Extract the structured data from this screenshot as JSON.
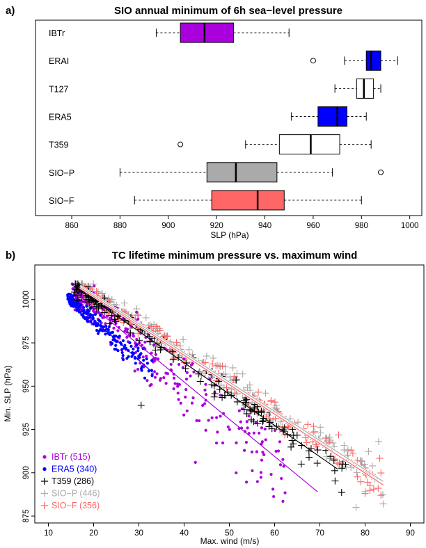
{
  "chart_data": [
    {
      "type": "boxplot",
      "panel_label": "a)",
      "title": "SIO annual minimum of 6h sea−level pressure",
      "xlabel": "SLP (hPa)",
      "xlim": [
        845,
        1005
      ],
      "xticks": [
        "860",
        "880",
        "900",
        "920",
        "940",
        "960",
        "980",
        "1000"
      ],
      "colors": {
        "IBTr": "#aa00dd",
        "ERAI": "#0000ff",
        "T127": "#ffffff",
        "ERA5": "#0000ff",
        "T359": "#ffffff",
        "SIO-P": "#aaaaaa",
        "SIO-F": "#ff6666"
      },
      "boxes": [
        {
          "name": "IBTr",
          "color": "#aa00dd",
          "whisker_low": 895,
          "q1": 905,
          "median": 915,
          "q3": 927,
          "whisker_high": 950,
          "outliers": []
        },
        {
          "name": "ERAI",
          "color": "#0000ff",
          "whisker_low": 973,
          "q1": 982,
          "median": 984,
          "q3": 988,
          "whisker_high": 995,
          "outliers": [
            960
          ]
        },
        {
          "name": "T127",
          "color": "#ffffff",
          "whisker_low": 969,
          "q1": 978,
          "median": 981,
          "q3": 985,
          "whisker_high": 988,
          "outliers": []
        },
        {
          "name": "ERA5",
          "color": "#0000ff",
          "whisker_low": 951,
          "q1": 962,
          "median": 970,
          "q3": 974,
          "whisker_high": 982,
          "outliers": []
        },
        {
          "name": "T359",
          "color": "#ffffff",
          "whisker_low": 932,
          "q1": 946,
          "median": 959,
          "q3": 971,
          "whisker_high": 984,
          "outliers": [
            905
          ]
        },
        {
          "name": "SIO−P",
          "color": "#aaaaaa",
          "whisker_low": 880,
          "q1": 916,
          "median": 928,
          "q3": 945,
          "whisker_high": 968,
          "outliers": [
            988
          ]
        },
        {
          "name": "SIO−F",
          "color": "#ff6666",
          "whisker_low": 886,
          "q1": 918,
          "median": 937,
          "q3": 948,
          "whisker_high": 980,
          "outliers": []
        }
      ]
    },
    {
      "type": "scatter",
      "panel_label": "b)",
      "title": "TC lifetime minimum pressure vs. maximum wind",
      "xlabel": "Max. wind (m/s)",
      "ylabel": "Min. SLP (hPa)",
      "xlim": [
        7,
        93
      ],
      "ylim": [
        871,
        1020
      ],
      "xticks": [
        "10",
        "20",
        "30",
        "40",
        "50",
        "60",
        "70",
        "80",
        "90"
      ],
      "yticks": [
        "875",
        "900",
        "925",
        "950",
        "975",
        "1000"
      ],
      "legend_position": "bottom-left",
      "series": [
        {
          "name": "IBTr",
          "count_label": "(515)",
          "color": "#aa00dd",
          "marker": "dot",
          "n": 515,
          "wind_range": [
            16,
            62
          ],
          "trend": {
            "x": [
              16,
              69.5
            ],
            "y": [
              1004,
              889
            ]
          },
          "noise": 20
        },
        {
          "name": "ERA5",
          "count_label": "(340)",
          "color": "#0000ff",
          "marker": "dot",
          "n": 340,
          "wind_range": [
            15,
            33
          ],
          "trend": {
            "x": [
              15,
              33
            ],
            "y": [
              1000,
              958
            ]
          },
          "noise": 7
        },
        {
          "name": "T359",
          "count_label": "(286)",
          "color": "#000000",
          "marker": "plus",
          "n": 286,
          "wind_range": [
            16,
            75
          ],
          "trend": {
            "x": [
              16,
              74
            ],
            "y": [
              1007,
              902
            ]
          },
          "noise": 10
        },
        {
          "name": "SIO−P",
          "count_label": "(446)",
          "color": "#aaaaaa",
          "marker": "plus",
          "n": 446,
          "wind_range": [
            17,
            84
          ],
          "trend": {
            "x": [
              17,
              84
            ],
            "y": [
              1008,
              895
            ]
          },
          "noise": 9
        },
        {
          "name": "SIO−F",
          "count_label": "(356)",
          "color": "#ff6666",
          "marker": "plus",
          "n": 356,
          "wind_range": [
            17,
            84
          ],
          "trend": {
            "x": [
              17,
              84
            ],
            "y": [
              1007,
              893
            ]
          },
          "noise": 9
        }
      ],
      "outlier_points": [
        {
          "series": "T359",
          "x": 30.5,
          "y": 939
        },
        {
          "series": "T359",
          "x": 75,
          "y": 905
        },
        {
          "series": "IBTr",
          "x": 42.5,
          "y": 906
        },
        {
          "series": "IBTr",
          "x": 55,
          "y": 912
        },
        {
          "series": "SIO−P",
          "x": 78,
          "y": 880
        },
        {
          "series": "SIO−P",
          "x": 84,
          "y": 882
        },
        {
          "series": "SIO−P",
          "x": 83,
          "y": 918
        },
        {
          "series": "SIO−F",
          "x": 83.5,
          "y": 887
        },
        {
          "series": "SIO−F",
          "x": 80,
          "y": 888
        }
      ]
    }
  ]
}
